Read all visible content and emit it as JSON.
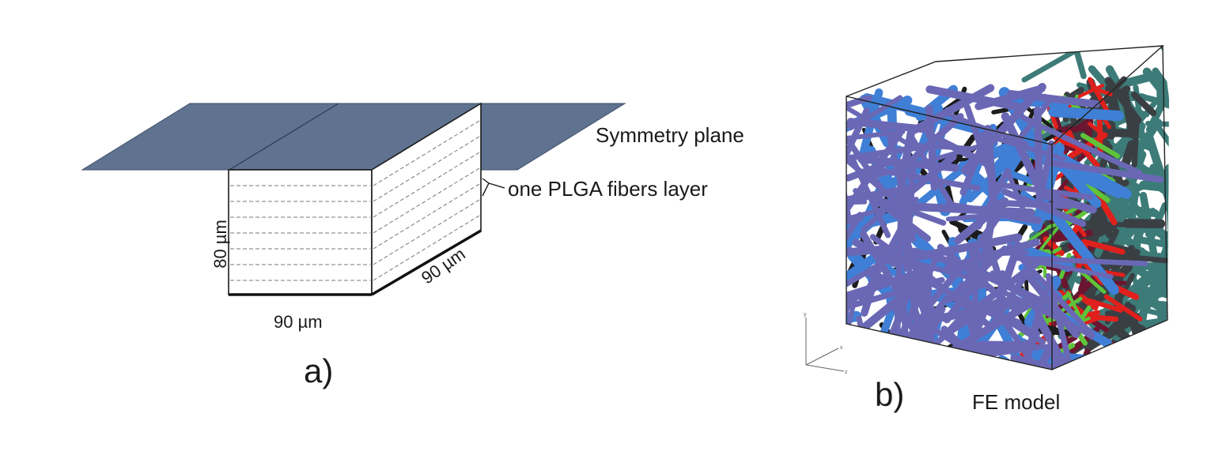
{
  "panel_a": {
    "label": "a)",
    "symmetry_plane": "Symmetry plane",
    "layer_label": "one PLGA fibers layer",
    "height": "80 µm",
    "width": "90 µm",
    "depth": "90 µm",
    "plane_color": "#5f7290"
  },
  "panel_b": {
    "label": "b)",
    "caption": "FE model",
    "axes": {
      "x": "x",
      "y": "y",
      "z": "z"
    },
    "fiber_colors": [
      "#6a68b5",
      "#3f7fd6",
      "#1c1c1c",
      "#5ec43a",
      "#e0201c",
      "#6b1530",
      "#3a3f43",
      "#3c7b78"
    ]
  }
}
